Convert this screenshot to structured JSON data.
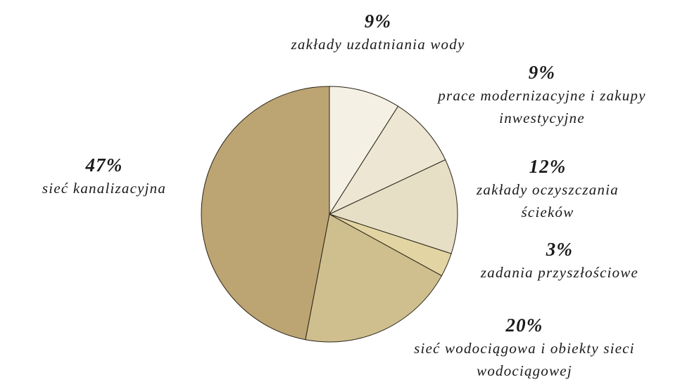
{
  "chart_data": {
    "type": "pie",
    "categories": [
      "zakłady uzdatniania wody",
      "prace modernizacyjne i zakupy inwestycyjne",
      "zakłady oczyszczania ścieków",
      "zadania przyszłościowe",
      "sieć wodociągowa i obiekty sieci wodociągowej",
      "sieć kanalizacyjna"
    ],
    "values": [
      9,
      9,
      12,
      3,
      20,
      47
    ],
    "value_labels": [
      "9%",
      "9%",
      "12%",
      "3%",
      "20%",
      "47%"
    ],
    "colors": [
      "#f4f1e4",
      "#ede6d3",
      "#e6dfc6",
      "#e2d5a3",
      "#cfbf8e",
      "#bca473"
    ]
  }
}
